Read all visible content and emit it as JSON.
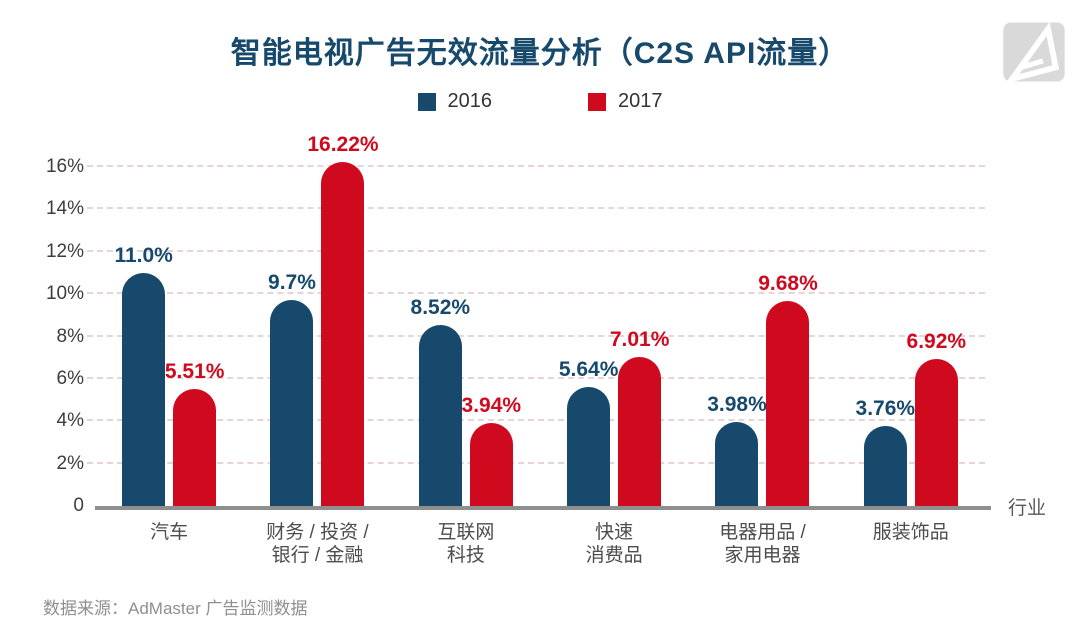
{
  "title": "智能电视广告无效流量分析（C2S API流量）",
  "colors": {
    "title": "#16496b",
    "blue": "#16496b",
    "red": "#d00a1e",
    "grid": "#e8d4d7",
    "axis": "#8f8f8f",
    "tick_text": "#3d3d3d",
    "category_text": "#4d4d4d",
    "legend_text": "#333333",
    "source_text": "#8f8f8f",
    "logo_bg": "#d9d9d9"
  },
  "legend": [
    {
      "label": "2016",
      "color": "#16496b"
    },
    {
      "label": "2017",
      "color": "#d00a1e"
    }
  ],
  "y_axis": {
    "ticks": [
      {
        "label": "16%",
        "value": 16
      },
      {
        "label": "14%",
        "value": 14
      },
      {
        "label": "12%",
        "value": 12
      },
      {
        "label": "10%",
        "value": 10
      },
      {
        "label": "8%",
        "value": 8
      },
      {
        "label": "6%",
        "value": 6
      },
      {
        "label": "4%",
        "value": 4
      },
      {
        "label": "2%",
        "value": 2
      },
      {
        "label": "0",
        "value": 0
      }
    ]
  },
  "x_axis_title": "行业",
  "source": "数据来源：AdMaster 广告监测数据",
  "logo": "admaster-logo",
  "chart_data": {
    "type": "bar",
    "title": "智能电视广告无效流量分析（C2S API流量）",
    "xlabel": "行业",
    "ylabel": "",
    "ylim": [
      0,
      16
    ],
    "grid": "horizontal-dashed",
    "legend_position": "top-center",
    "categories": [
      [
        "汽车"
      ],
      [
        "财务 / 投资 /",
        "银行 / 金融"
      ],
      [
        "互联网",
        "科技"
      ],
      [
        "快速",
        "消费品"
      ],
      [
        "电器用品 /",
        "家用电器"
      ],
      [
        "服装饰品"
      ]
    ],
    "series": [
      {
        "name": "2016",
        "color": "#16496b",
        "values": [
          11.0,
          9.7,
          8.52,
          5.64,
          3.98,
          3.76
        ],
        "labels": [
          "11.0%",
          "9.7%",
          "8.52%",
          "5.64%",
          "3.98%",
          "3.76%"
        ]
      },
      {
        "name": "2017",
        "color": "#d00a1e",
        "values": [
          5.51,
          16.22,
          3.94,
          7.01,
          9.68,
          6.92
        ],
        "labels": [
          "5.51%",
          "16.22%",
          "3.94%",
          "7.01%",
          "9.68%",
          "6.92%"
        ]
      }
    ]
  }
}
